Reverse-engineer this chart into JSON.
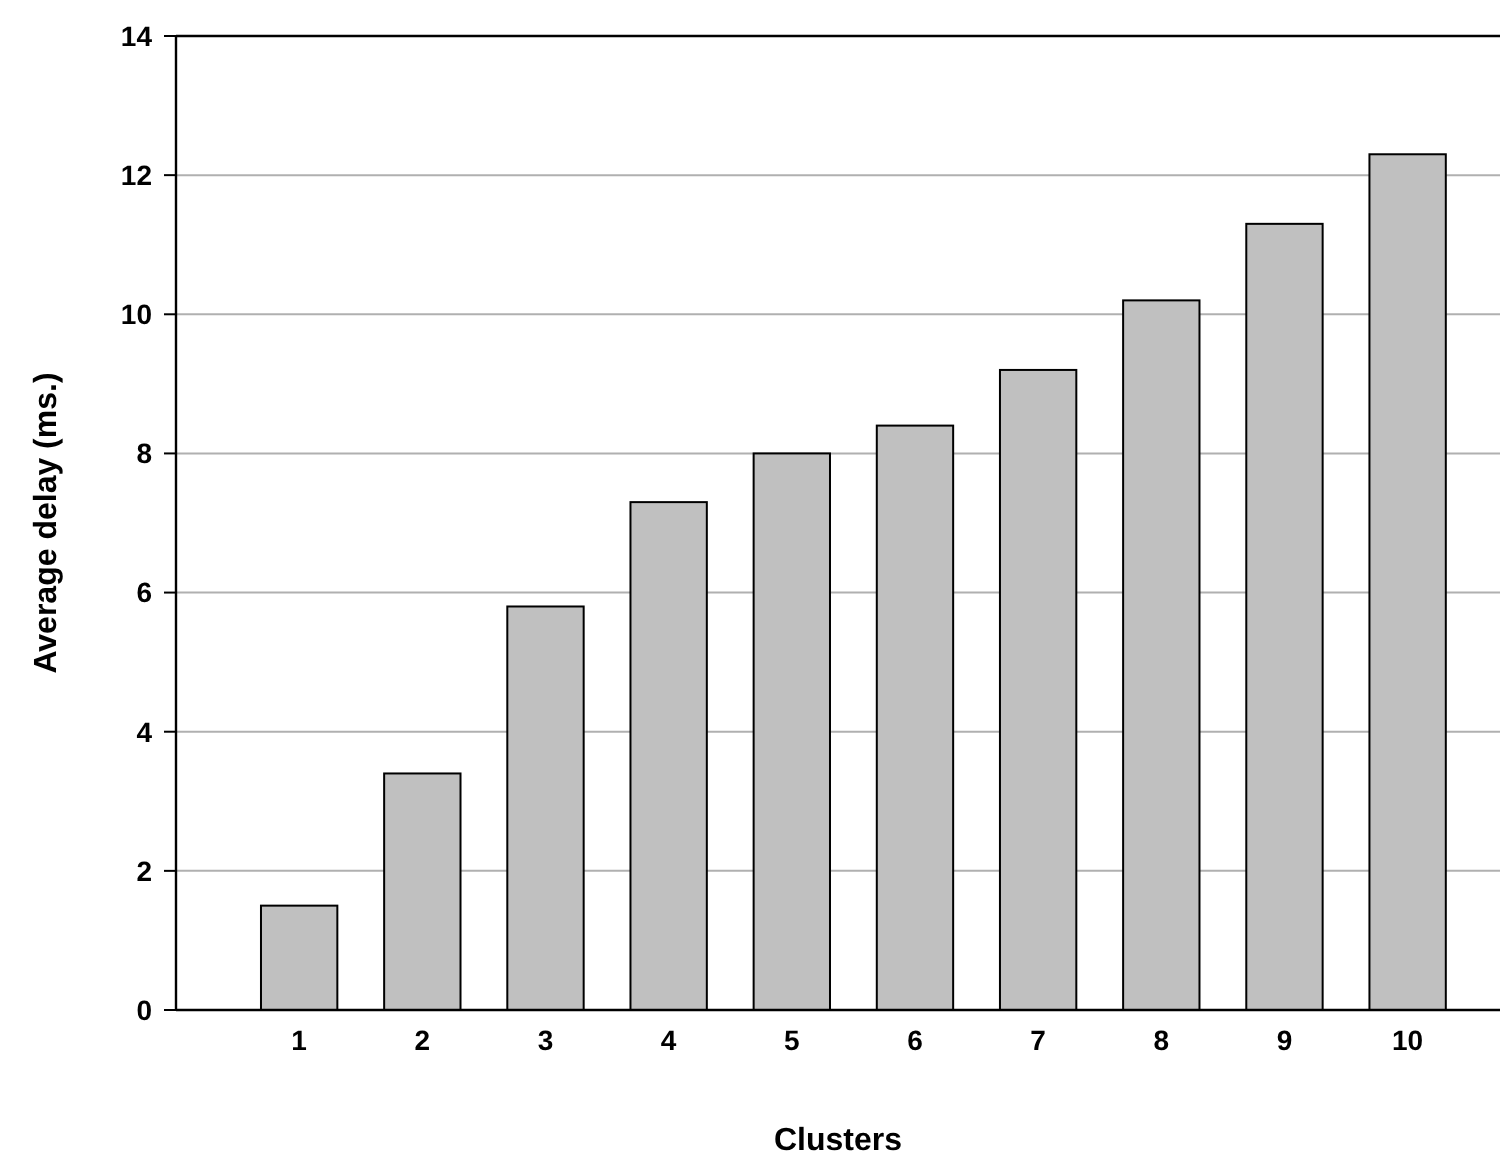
{
  "chart_data": {
    "type": "bar",
    "xlabel": "Clusters",
    "ylabel": "Average delay (ms.)",
    "categories": [
      "1",
      "2",
      "3",
      "4",
      "5",
      "6",
      "7",
      "8",
      "9",
      "10"
    ],
    "values": [
      1.5,
      3.4,
      5.8,
      7.3,
      8.0,
      8.4,
      9.2,
      10.2,
      11.3,
      12.3
    ],
    "color": "#c0c0c0",
    "ylim": [
      0,
      14
    ],
    "yticks": [
      0,
      2,
      4,
      6,
      8,
      10,
      12,
      14
    ],
    "grid": "y"
  }
}
